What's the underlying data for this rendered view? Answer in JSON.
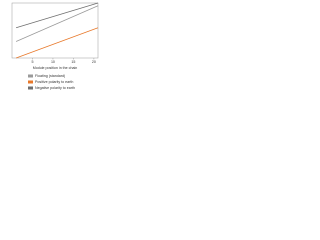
{
  "chart_data": {
    "type": "line",
    "x_label": "Module position in the chain",
    "x": [
      1,
      21
    ],
    "xlim": [
      0,
      21
    ],
    "xticks": [
      5,
      10,
      15,
      20
    ],
    "ylim": [
      0,
      100
    ],
    "series": [
      {
        "name": "Floating (standard)",
        "color": "#9a9a9a",
        "values": [
          30,
          95
        ]
      },
      {
        "name": "Positive polarity to earth",
        "color": "#e8782a",
        "values": [
          0,
          55
        ]
      },
      {
        "name": "Negative polarity to earth",
        "color": "#6f6f6f",
        "values": [
          55,
          100
        ]
      }
    ]
  }
}
